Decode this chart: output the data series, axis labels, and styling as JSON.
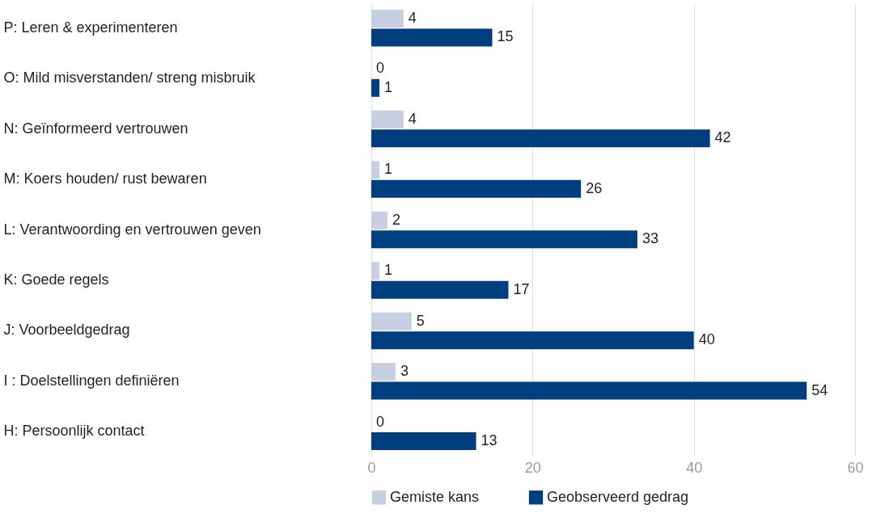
{
  "chart_data": {
    "type": "bar",
    "orientation": "horizontal",
    "categories": [
      "P: Leren & experimenteren",
      "O: Mild misverstanden/ streng misbruik",
      "N: Geïnformeerd vertrouwen",
      "M: Koers houden/ rust bewaren",
      "L: Verantwoording en vertrouwen geven",
      "K: Goede regels",
      "J: Voorbeeldgedrag",
      "I : Doelstellingen definiëren",
      "H: Persoonlijk contact"
    ],
    "series": [
      {
        "name": "Gemiste kans",
        "color": "#c8cfe3",
        "values": [
          4,
          0,
          4,
          1,
          2,
          1,
          5,
          3,
          0
        ]
      },
      {
        "name": "Geobserveerd gedrag",
        "color": "#003f7f",
        "values": [
          15,
          1,
          42,
          26,
          33,
          17,
          40,
          54,
          13
        ]
      }
    ],
    "xlim": [
      0,
      60
    ],
    "xticks": [
      0,
      20,
      40,
      60
    ],
    "grid": "x",
    "legend": "bottom",
    "data_labels": true
  }
}
